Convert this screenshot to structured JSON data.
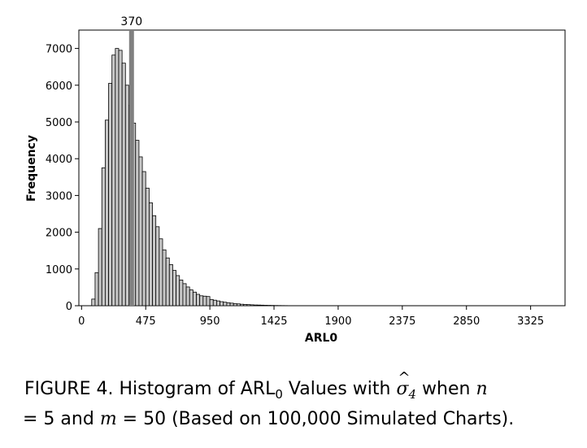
{
  "chart_data": {
    "type": "bar",
    "subtype": "histogram",
    "xlabel": "ARL0",
    "ylabel": "Frequency",
    "xlim": [
      -20,
      3580
    ],
    "ylim": [
      0,
      7500
    ],
    "xticks": [
      0,
      475,
      950,
      1425,
      1900,
      2375,
      2850,
      3325
    ],
    "yticks": [
      0,
      1000,
      2000,
      3000,
      4000,
      5000,
      6000,
      7000
    ],
    "bin_width": 25,
    "bin_start": 75,
    "values": [
      180,
      900,
      2100,
      3750,
      5050,
      6050,
      6820,
      7000,
      6950,
      6600,
      6000,
      5450,
      4970,
      4500,
      4050,
      3650,
      3200,
      2800,
      2450,
      2150,
      1820,
      1520,
      1300,
      1120,
      960,
      820,
      700,
      600,
      510,
      430,
      370,
      310,
      270,
      260,
      250,
      170,
      150,
      130,
      110,
      95,
      80,
      70,
      55,
      50,
      40,
      35,
      30,
      25,
      20,
      18,
      15,
      12,
      10,
      8,
      6,
      5,
      4,
      3,
      2,
      2,
      1,
      1
    ],
    "reference_line": {
      "x": 370,
      "label": "370"
    },
    "colors": {
      "bar_fill": "#c8c8c8",
      "bar_edge": "#000000",
      "reference_line": "#808080"
    }
  },
  "caption": {
    "prefix": "FIGURE 4. Histogram of ARL",
    "sub": "0",
    "mid": " Values with ",
    "sigma_hat": "^",
    "sigma": "σ",
    "sigma_sub": "4",
    "when": " when ",
    "n_var": "n",
    "line2_eq1": "= 5 and ",
    "m_var": "m",
    "line2_rest": " = 50 (Based on 100,000 Simulated Charts)."
  }
}
